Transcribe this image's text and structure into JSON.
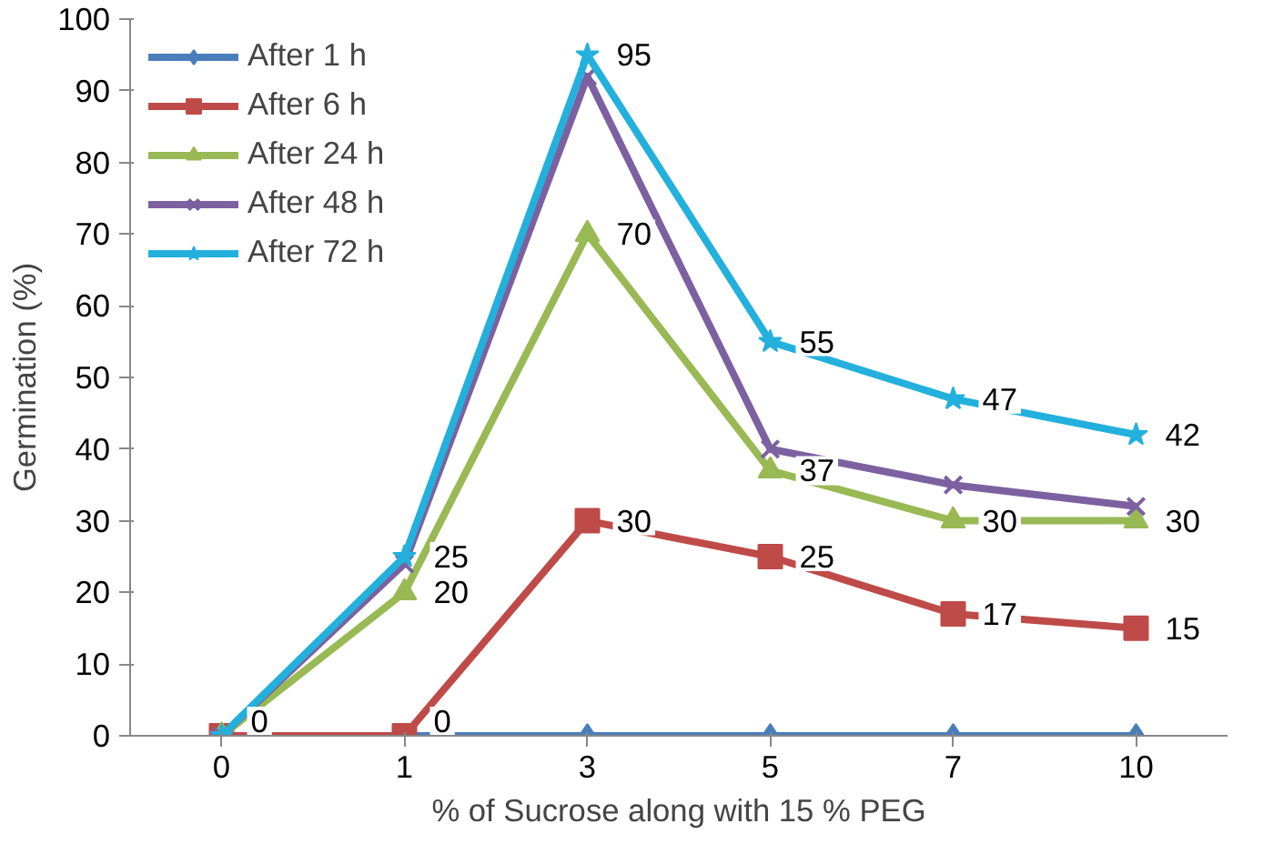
{
  "chart_data": {
    "type": "line",
    "xlabel": "% of Sucrose along with 15 % PEG",
    "ylabel": "Germination (%)",
    "categories": [
      "0",
      "1",
      "3",
      "5",
      "7",
      "10"
    ],
    "ylim": [
      0,
      100
    ],
    "yticks": [
      0,
      10,
      20,
      30,
      40,
      50,
      60,
      70,
      80,
      90,
      100
    ],
    "grid": false,
    "legend": "top left",
    "line_style": "solid",
    "series": [
      {
        "name": "After 1 h",
        "color": "#4a7ebb",
        "marker": "diamond",
        "values": [
          0,
          0,
          0,
          0,
          0,
          0
        ]
      },
      {
        "name": "After 6 h",
        "color": "#be4b48",
        "marker": "square",
        "values": [
          0,
          0,
          30,
          25,
          17,
          15
        ],
        "value_labels": [
          "0",
          "0",
          "30",
          "25",
          "17",
          "15"
        ]
      },
      {
        "name": "After 24 h",
        "color": "#98b954",
        "marker": "triangle",
        "values": [
          0,
          20,
          70,
          37,
          30,
          30
        ],
        "value_labels": [
          null,
          "20",
          "70",
          "37",
          "30",
          "30"
        ]
      },
      {
        "name": "After 48 h",
        "color": "#7d60a0",
        "marker": "cross",
        "values": [
          0,
          24,
          92,
          40,
          35,
          32
        ]
      },
      {
        "name": "After 72 h",
        "color": "#23b0dc",
        "marker": "star",
        "values": [
          0,
          25,
          95,
          55,
          47,
          42
        ],
        "value_labels": [
          null,
          "25",
          "95",
          "55",
          "47",
          "42"
        ]
      }
    ]
  }
}
